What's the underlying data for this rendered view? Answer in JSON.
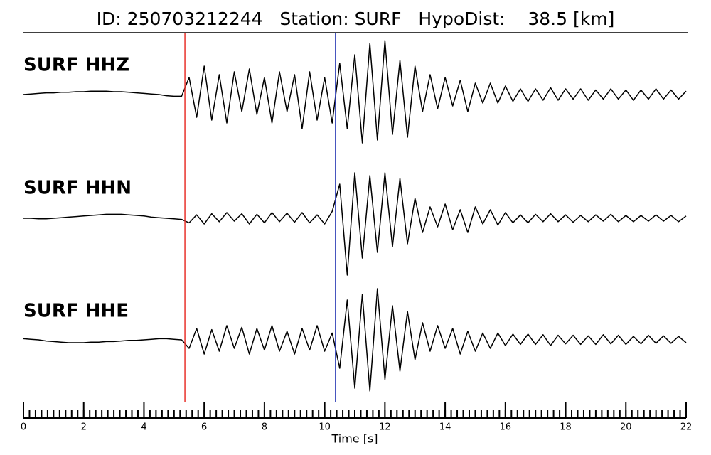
{
  "chart_data": {
    "type": "line",
    "title": "ID: 250703212244   Station: SURF   HypoDist:    38.5 [km]",
    "xlabel": "Time [s]",
    "xlim": [
      0,
      22
    ],
    "xticks": [
      0,
      2,
      4,
      6,
      8,
      10,
      12,
      14,
      16,
      18,
      20,
      22
    ],
    "minor_tick_interval": 0.2,
    "markers": [
      {
        "x": 5.36,
        "color": "#e8322b"
      },
      {
        "x": 10.36,
        "color": "#2a3bb5"
      }
    ],
    "x": [
      0,
      0.25,
      0.5,
      0.75,
      1,
      1.25,
      1.5,
      1.75,
      2,
      2.25,
      2.5,
      2.75,
      3,
      3.25,
      3.5,
      3.75,
      4,
      4.25,
      4.5,
      4.75,
      5,
      5.25,
      5.5,
      5.75,
      6,
      6.25,
      6.5,
      6.75,
      7,
      7.25,
      7.5,
      7.75,
      8,
      8.25,
      8.5,
      8.75,
      9,
      9.25,
      9.5,
      9.75,
      10,
      10.25,
      10.5,
      10.75,
      11,
      11.25,
      11.5,
      11.75,
      12,
      12.25,
      12.5,
      12.75,
      13,
      13.25,
      13.5,
      13.75,
      14,
      14.25,
      14.5,
      14.75,
      15,
      15.25,
      15.5,
      15.75,
      16,
      16.25,
      16.5,
      16.75,
      17,
      17.25,
      17.5,
      17.75,
      18,
      18.25,
      18.5,
      18.75,
      19,
      19.25,
      19.5,
      19.75,
      20,
      20.25,
      20.5,
      20.75,
      21,
      21.25,
      21.5,
      21.75,
      22
    ],
    "series": [
      {
        "name": "SURF HHZ",
        "color": "#000000",
        "label_color": "#4a9a0c",
        "values": [
          0,
          0.01,
          0.02,
          0.03,
          0.03,
          0.04,
          0.04,
          0.05,
          0.05,
          0.06,
          0.06,
          0.06,
          0.05,
          0.05,
          0.04,
          0.03,
          0.02,
          0.01,
          0,
          -0.02,
          -0.03,
          -0.03,
          0.3,
          -0.4,
          0.5,
          -0.45,
          0.35,
          -0.5,
          0.4,
          -0.3,
          0.45,
          -0.35,
          0.3,
          -0.5,
          0.4,
          -0.3,
          0.35,
          -0.6,
          0.4,
          -0.45,
          0.3,
          -0.5,
          0.55,
          -0.6,
          0.7,
          -0.85,
          0.9,
          -0.8,
          0.95,
          -0.7,
          0.6,
          -0.75,
          0.5,
          -0.3,
          0.35,
          -0.25,
          0.3,
          -0.2,
          0.25,
          -0.3,
          0.2,
          -0.15,
          0.2,
          -0.15,
          0.15,
          -0.12,
          0.1,
          -0.12,
          0.1,
          -0.1,
          0.12,
          -0.1,
          0.1,
          -0.08,
          0.1,
          -0.1,
          0.08,
          -0.08,
          0.1,
          -0.08,
          0.08,
          -0.1,
          0.08,
          -0.08,
          0.1,
          -0.08,
          0.08,
          -0.08,
          0.06
        ]
      },
      {
        "name": "SURF HHN",
        "color": "#000000",
        "label_color": "#4a9a0c",
        "values": [
          0,
          0,
          -0.01,
          -0.01,
          0,
          0.01,
          0.02,
          0.03,
          0.04,
          0.05,
          0.06,
          0.07,
          0.07,
          0.07,
          0.06,
          0.05,
          0.04,
          0.02,
          0.01,
          0,
          -0.01,
          -0.02,
          -0.08,
          0.06,
          -0.1,
          0.08,
          -0.06,
          0.1,
          -0.05,
          0.08,
          -0.1,
          0.07,
          -0.08,
          0.1,
          -0.06,
          0.09,
          -0.07,
          0.1,
          -0.08,
          0.06,
          -0.1,
          0.12,
          0.6,
          -1.0,
          0.8,
          -0.7,
          0.75,
          -0.6,
          0.8,
          -0.5,
          0.7,
          -0.45,
          0.35,
          -0.25,
          0.2,
          -0.15,
          0.25,
          -0.2,
          0.15,
          -0.25,
          0.2,
          -0.1,
          0.15,
          -0.12,
          0.1,
          -0.08,
          0.06,
          -0.08,
          0.07,
          -0.06,
          0.08,
          -0.06,
          0.06,
          -0.07,
          0.05,
          -0.06,
          0.06,
          -0.05,
          0.07,
          -0.06,
          0.05,
          -0.06,
          0.05,
          -0.05,
          0.06,
          -0.05,
          0.05,
          -0.06,
          0.04
        ]
      },
      {
        "name": "SURF HHE",
        "color": "#000000",
        "label_color": "#4a9a0c",
        "values": [
          0.02,
          0.01,
          0,
          -0.02,
          -0.03,
          -0.04,
          -0.05,
          -0.05,
          -0.05,
          -0.04,
          -0.04,
          -0.03,
          -0.03,
          -0.02,
          -0.01,
          -0.01,
          0,
          0.01,
          0.02,
          0.02,
          0.01,
          0,
          -0.15,
          0.2,
          -0.25,
          0.18,
          -0.2,
          0.25,
          -0.15,
          0.22,
          -0.25,
          0.2,
          -0.18,
          0.25,
          -0.2,
          0.15,
          -0.25,
          0.2,
          -0.18,
          0.25,
          -0.2,
          0.12,
          -0.5,
          0.7,
          -0.85,
          0.8,
          -0.9,
          0.9,
          -0.7,
          0.6,
          -0.55,
          0.5,
          -0.35,
          0.3,
          -0.2,
          0.25,
          -0.15,
          0.2,
          -0.25,
          0.15,
          -0.2,
          0.12,
          -0.15,
          0.12,
          -0.1,
          0.1,
          -0.08,
          0.1,
          -0.08,
          0.09,
          -0.1,
          0.08,
          -0.07,
          0.08,
          -0.08,
          0.07,
          -0.08,
          0.09,
          -0.07,
          0.08,
          -0.08,
          0.06,
          -0.07,
          0.08,
          -0.06,
          0.07,
          -0.06,
          0.06,
          -0.05
        ]
      }
    ]
  }
}
